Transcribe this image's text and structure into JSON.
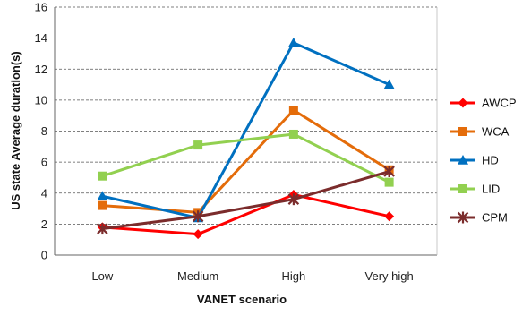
{
  "chart_data": {
    "type": "line",
    "title": "",
    "xlabel": "VANET scenario",
    "ylabel": "US state Average duration(s)",
    "categories": [
      "Low",
      "Medium",
      "High",
      "Very high"
    ],
    "ylim": [
      0,
      16
    ],
    "yticks": [
      0,
      2,
      4,
      6,
      8,
      10,
      12,
      14,
      16
    ],
    "grid": "horizontal dashed",
    "legend_position": "right",
    "series": [
      {
        "name": "AWCP",
        "values": [
          1.8,
          1.35,
          3.9,
          2.5
        ],
        "color": "#ff0000",
        "marker": "diamond"
      },
      {
        "name": "WCA",
        "values": [
          3.2,
          2.75,
          9.35,
          5.5
        ],
        "color": "#e46c0a",
        "marker": "square"
      },
      {
        "name": "HD",
        "values": [
          3.8,
          2.4,
          13.7,
          11.0
        ],
        "color": "#0070c0",
        "marker": "triangle"
      },
      {
        "name": "LID",
        "values": [
          5.1,
          7.1,
          7.8,
          4.7
        ],
        "color": "#92d050",
        "marker": "square"
      },
      {
        "name": "CPM",
        "values": [
          1.7,
          2.5,
          3.6,
          5.4
        ],
        "color": "#7b2c2c",
        "marker": "star"
      }
    ]
  }
}
